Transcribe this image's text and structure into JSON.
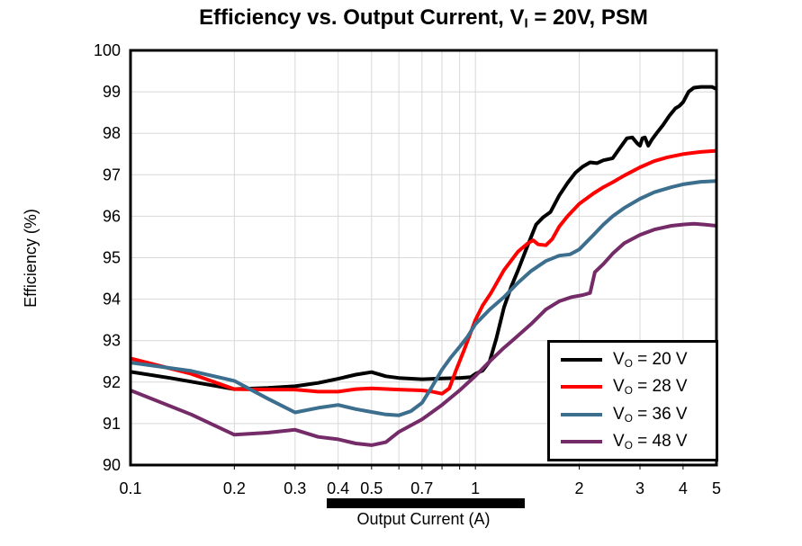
{
  "title": {
    "pre": "Efficiency vs. Output Current, V",
    "sub": "I",
    "post": " = 20V, PSM"
  },
  "y_axis": {
    "label": "Efficiency (%)"
  },
  "x_axis": {
    "label": "Output Current (A)"
  },
  "colors": {
    "grid": "#D8D8D8",
    "frame": "#000000",
    "background": "#FFFFFF",
    "highlight_bar": "#000000"
  },
  "chart_data": {
    "type": "line",
    "title": "Efficiency vs. Output Current, VI = 20V, PSM",
    "xlabel": "Output Current (A)",
    "ylabel": "Efficiency (%)",
    "xscale": "log",
    "xlim": [
      0.1,
      5
    ],
    "ylim": [
      90,
      100
    ],
    "grid": true,
    "legend_position": "lower right",
    "x_ticks": {
      "values": [
        0.1,
        0.2,
        0.3,
        0.4,
        0.5,
        0.7,
        1,
        2,
        3,
        4,
        5
      ],
      "labels": [
        "0.1",
        "0.2",
        "0.3",
        "0.4",
        "0.5",
        "0.7",
        "1",
        "2",
        "3",
        "4",
        "5"
      ]
    },
    "y_ticks": {
      "values": [
        90,
        91,
        92,
        93,
        94,
        95,
        96,
        97,
        98,
        99,
        100
      ],
      "labels": [
        "90",
        "91",
        "92",
        "93",
        "94",
        "95",
        "96",
        "97",
        "98",
        "99",
        "100"
      ]
    },
    "minor_gridlines_x": [
      0.2,
      0.3,
      0.4,
      0.5,
      0.6,
      0.7,
      0.8,
      0.9,
      1,
      2,
      3,
      4
    ],
    "series": [
      {
        "id": "vo-20",
        "name": "VO = 20 V",
        "legend": {
          "pre": "V",
          "sub": "O",
          "post": " = 20 V"
        },
        "color": "#000000",
        "points": [
          [
            0.1,
            92.25
          ],
          [
            0.13,
            92.1
          ],
          [
            0.16,
            91.97
          ],
          [
            0.2,
            91.83
          ],
          [
            0.25,
            91.86
          ],
          [
            0.3,
            91.9
          ],
          [
            0.35,
            91.98
          ],
          [
            0.4,
            92.08
          ],
          [
            0.45,
            92.18
          ],
          [
            0.5,
            92.24
          ],
          [
            0.55,
            92.14
          ],
          [
            0.6,
            92.1
          ],
          [
            0.7,
            92.07
          ],
          [
            0.8,
            92.09
          ],
          [
            0.9,
            92.1
          ],
          [
            0.97,
            92.12
          ],
          [
            1.0,
            92.2
          ],
          [
            1.05,
            92.28
          ],
          [
            1.1,
            92.5
          ],
          [
            1.15,
            93.05
          ],
          [
            1.21,
            93.8
          ],
          [
            1.27,
            94.3
          ],
          [
            1.33,
            94.7
          ],
          [
            1.41,
            95.25
          ],
          [
            1.5,
            95.8
          ],
          [
            1.57,
            95.97
          ],
          [
            1.65,
            96.1
          ],
          [
            1.75,
            96.5
          ],
          [
            1.85,
            96.8
          ],
          [
            1.95,
            97.05
          ],
          [
            2.05,
            97.2
          ],
          [
            2.15,
            97.3
          ],
          [
            2.25,
            97.28
          ],
          [
            2.35,
            97.35
          ],
          [
            2.5,
            97.4
          ],
          [
            2.6,
            97.6
          ],
          [
            2.75,
            97.88
          ],
          [
            2.85,
            97.9
          ],
          [
            2.95,
            97.75
          ],
          [
            3.0,
            97.7
          ],
          [
            3.05,
            97.88
          ],
          [
            3.1,
            97.9
          ],
          [
            3.17,
            97.7
          ],
          [
            3.25,
            97.85
          ],
          [
            3.35,
            98.0
          ],
          [
            3.5,
            98.2
          ],
          [
            3.65,
            98.42
          ],
          [
            3.8,
            98.6
          ],
          [
            3.9,
            98.66
          ],
          [
            4.0,
            98.75
          ],
          [
            4.15,
            99.0
          ],
          [
            4.3,
            99.1
          ],
          [
            4.5,
            99.12
          ],
          [
            4.7,
            99.12
          ],
          [
            4.85,
            99.12
          ],
          [
            5.0,
            99.07
          ]
        ]
      },
      {
        "id": "vo-28",
        "name": "VO = 28 V",
        "legend": {
          "pre": "V",
          "sub": "O",
          "post": " = 28 V"
        },
        "color": "#FF0000",
        "points": [
          [
            0.1,
            92.57
          ],
          [
            0.15,
            92.2
          ],
          [
            0.2,
            91.83
          ],
          [
            0.25,
            91.82
          ],
          [
            0.3,
            91.82
          ],
          [
            0.35,
            91.77
          ],
          [
            0.4,
            91.77
          ],
          [
            0.45,
            91.83
          ],
          [
            0.5,
            91.85
          ],
          [
            0.6,
            91.82
          ],
          [
            0.7,
            91.8
          ],
          [
            0.75,
            91.77
          ],
          [
            0.8,
            91.72
          ],
          [
            0.84,
            91.85
          ],
          [
            0.88,
            92.3
          ],
          [
            0.93,
            92.8
          ],
          [
            1.0,
            93.5
          ],
          [
            1.05,
            93.85
          ],
          [
            1.11,
            94.15
          ],
          [
            1.21,
            94.7
          ],
          [
            1.33,
            95.15
          ],
          [
            1.42,
            95.35
          ],
          [
            1.47,
            95.42
          ],
          [
            1.52,
            95.32
          ],
          [
            1.6,
            95.3
          ],
          [
            1.67,
            95.45
          ],
          [
            1.75,
            95.75
          ],
          [
            1.85,
            96.0
          ],
          [
            2.0,
            96.3
          ],
          [
            2.2,
            96.55
          ],
          [
            2.35,
            96.7
          ],
          [
            2.5,
            96.82
          ],
          [
            2.7,
            96.98
          ],
          [
            3.0,
            97.18
          ],
          [
            3.3,
            97.33
          ],
          [
            3.6,
            97.42
          ],
          [
            4.0,
            97.5
          ],
          [
            4.5,
            97.55
          ],
          [
            5.0,
            97.58
          ]
        ]
      },
      {
        "id": "vo-36",
        "name": "VO = 36 V",
        "legend": {
          "pre": "V",
          "sub": "O",
          "post": " = 36 V"
        },
        "color": "#3C6E8E",
        "points": [
          [
            0.1,
            92.47
          ],
          [
            0.15,
            92.27
          ],
          [
            0.2,
            92.03
          ],
          [
            0.25,
            91.6
          ],
          [
            0.3,
            91.27
          ],
          [
            0.35,
            91.38
          ],
          [
            0.4,
            91.45
          ],
          [
            0.45,
            91.35
          ],
          [
            0.5,
            91.28
          ],
          [
            0.55,
            91.22
          ],
          [
            0.6,
            91.2
          ],
          [
            0.65,
            91.3
          ],
          [
            0.7,
            91.5
          ],
          [
            0.75,
            91.9
          ],
          [
            0.8,
            92.3
          ],
          [
            0.85,
            92.6
          ],
          [
            0.9,
            92.85
          ],
          [
            0.95,
            93.1
          ],
          [
            1.0,
            93.4
          ],
          [
            1.1,
            93.75
          ],
          [
            1.21,
            94.05
          ],
          [
            1.33,
            94.4
          ],
          [
            1.45,
            94.68
          ],
          [
            1.6,
            94.92
          ],
          [
            1.75,
            95.05
          ],
          [
            1.88,
            95.08
          ],
          [
            1.95,
            95.15
          ],
          [
            2.0,
            95.2
          ],
          [
            2.2,
            95.55
          ],
          [
            2.35,
            95.8
          ],
          [
            2.5,
            96.0
          ],
          [
            2.7,
            96.2
          ],
          [
            3.0,
            96.42
          ],
          [
            3.3,
            96.58
          ],
          [
            3.7,
            96.7
          ],
          [
            4.0,
            96.77
          ],
          [
            4.5,
            96.83
          ],
          [
            5.0,
            96.85
          ]
        ]
      },
      {
        "id": "vo-48",
        "name": "VO = 48 V",
        "legend": {
          "pre": "V",
          "sub": "O",
          "post": " = 48 V"
        },
        "color": "#742B68",
        "points": [
          [
            0.1,
            91.8
          ],
          [
            0.15,
            91.22
          ],
          [
            0.2,
            90.73
          ],
          [
            0.25,
            90.78
          ],
          [
            0.3,
            90.85
          ],
          [
            0.35,
            90.68
          ],
          [
            0.4,
            90.62
          ],
          [
            0.45,
            90.52
          ],
          [
            0.5,
            90.48
          ],
          [
            0.55,
            90.55
          ],
          [
            0.6,
            90.8
          ],
          [
            0.7,
            91.1
          ],
          [
            0.8,
            91.45
          ],
          [
            0.9,
            91.8
          ],
          [
            1.0,
            92.15
          ],
          [
            1.1,
            92.5
          ],
          [
            1.2,
            92.8
          ],
          [
            1.3,
            93.05
          ],
          [
            1.45,
            93.4
          ],
          [
            1.6,
            93.75
          ],
          [
            1.75,
            93.95
          ],
          [
            1.9,
            94.05
          ],
          [
            2.05,
            94.1
          ],
          [
            2.15,
            94.15
          ],
          [
            2.22,
            94.65
          ],
          [
            2.35,
            94.85
          ],
          [
            2.5,
            95.1
          ],
          [
            2.7,
            95.35
          ],
          [
            3.0,
            95.55
          ],
          [
            3.3,
            95.68
          ],
          [
            3.7,
            95.77
          ],
          [
            4.0,
            95.8
          ],
          [
            4.3,
            95.82
          ],
          [
            4.6,
            95.8
          ],
          [
            5.0,
            95.77
          ]
        ]
      }
    ]
  }
}
